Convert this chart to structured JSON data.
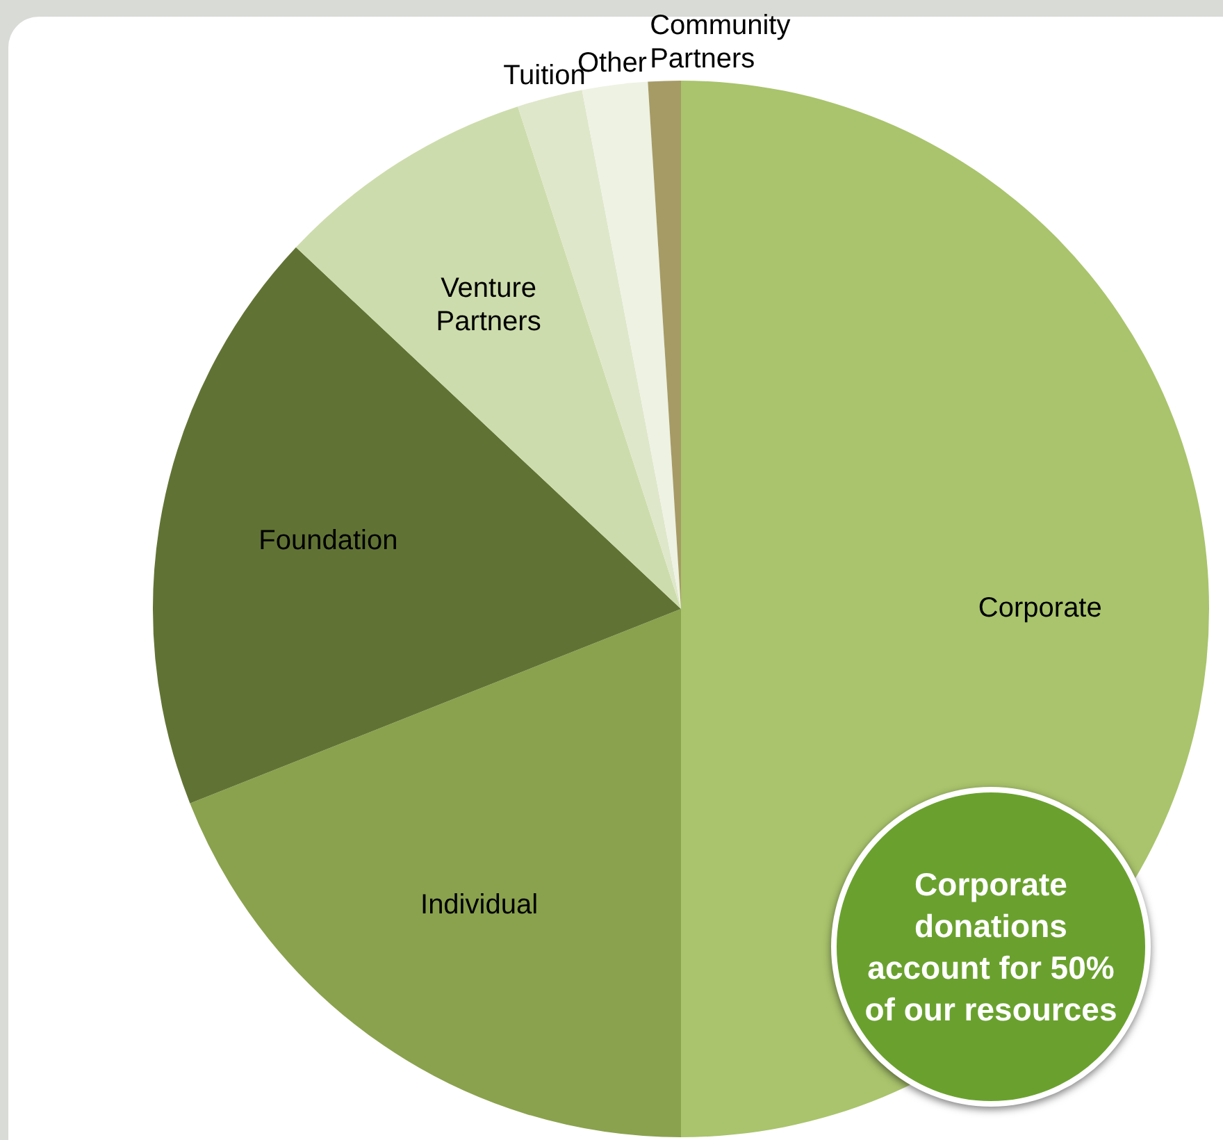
{
  "chart_data": {
    "type": "pie",
    "categories": [
      "Corporate",
      "Individual",
      "Foundation",
      "Venture Partners",
      "Tuition",
      "Other",
      "Community Partners"
    ],
    "values": [
      50,
      19,
      18,
      8,
      2,
      2,
      1
    ],
    "colors": [
      "#a9c46c",
      "#8aa24d",
      "#617334",
      "#cddcac",
      "#dfe7ca",
      "#eef2e3",
      "#a69b65"
    ],
    "annotations": [
      "Corporate donations account for 50% of our resources"
    ]
  }
}
